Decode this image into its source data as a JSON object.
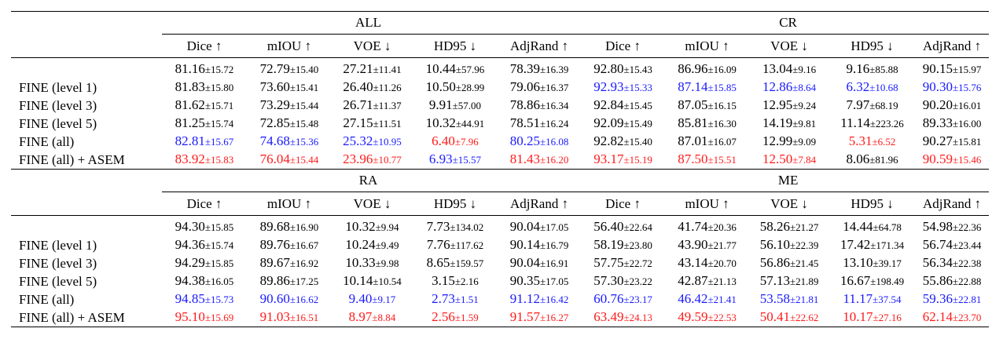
{
  "colors": {
    "blue": "#1a1aff",
    "red": "#ff1a1a",
    "black": "#000000"
  },
  "metrics": [
    "Dice ↑",
    "mIOU ↑",
    "VOE ↓",
    "HD95 ↓",
    "AdjRand ↑"
  ],
  "tables": [
    {
      "groups": [
        "ALL",
        "CR"
      ],
      "rows": [
        {
          "label": "",
          "cells": [
            {
              "v": "81.16",
              "s": "±15.72",
              "c": ""
            },
            {
              "v": "72.79",
              "s": "±15.40",
              "c": ""
            },
            {
              "v": "27.21",
              "s": "±11.41",
              "c": ""
            },
            {
              "v": "10.44",
              "s": "±57.96",
              "c": ""
            },
            {
              "v": "78.39",
              "s": "±16.39",
              "c": ""
            },
            {
              "v": "92.80",
              "s": "±15.43",
              "c": ""
            },
            {
              "v": "86.96",
              "s": "±16.09",
              "c": ""
            },
            {
              "v": "13.04",
              "s": "±9.16",
              "c": ""
            },
            {
              "v": "9.16",
              "s": "±85.88",
              "c": ""
            },
            {
              "v": "90.15",
              "s": "±15.97",
              "c": ""
            }
          ]
        },
        {
          "label": "FINE (level 1)",
          "cells": [
            {
              "v": "81.83",
              "s": "±15.80",
              "c": ""
            },
            {
              "v": "73.60",
              "s": "±15.41",
              "c": ""
            },
            {
              "v": "26.40",
              "s": "±11.26",
              "c": ""
            },
            {
              "v": "10.50",
              "s": "±28.99",
              "c": ""
            },
            {
              "v": "79.06",
              "s": "±16.37",
              "c": ""
            },
            {
              "v": "92.93",
              "s": "±15.33",
              "c": "blue"
            },
            {
              "v": "87.14",
              "s": "±15.85",
              "c": "blue"
            },
            {
              "v": "12.86",
              "s": "±8.64",
              "c": "blue"
            },
            {
              "v": "6.32",
              "s": "±10.68",
              "c": "blue"
            },
            {
              "v": "90.30",
              "s": "±15.76",
              "c": "blue"
            }
          ]
        },
        {
          "label": "FINE (level 3)",
          "cells": [
            {
              "v": "81.62",
              "s": "±15.71",
              "c": ""
            },
            {
              "v": "73.29",
              "s": "±15.44",
              "c": ""
            },
            {
              "v": "26.71",
              "s": "±11.37",
              "c": ""
            },
            {
              "v": "9.91",
              "s": "±57.00",
              "c": ""
            },
            {
              "v": "78.86",
              "s": "±16.34",
              "c": ""
            },
            {
              "v": "92.84",
              "s": "±15.45",
              "c": ""
            },
            {
              "v": "87.05",
              "s": "±16.15",
              "c": ""
            },
            {
              "v": "12.95",
              "s": "±9.24",
              "c": ""
            },
            {
              "v": "7.97",
              "s": "±68.19",
              "c": ""
            },
            {
              "v": "90.20",
              "s": "±16.01",
              "c": ""
            }
          ]
        },
        {
          "label": "FINE (level 5)",
          "cells": [
            {
              "v": "81.25",
              "s": "±15.74",
              "c": ""
            },
            {
              "v": "72.85",
              "s": "±15.48",
              "c": ""
            },
            {
              "v": "27.15",
              "s": "±11.51",
              "c": ""
            },
            {
              "v": "10.32",
              "s": "±44.91",
              "c": ""
            },
            {
              "v": "78.51",
              "s": "±16.24",
              "c": ""
            },
            {
              "v": "92.09",
              "s": "±15.49",
              "c": ""
            },
            {
              "v": "85.81",
              "s": "±16.30",
              "c": ""
            },
            {
              "v": "14.19",
              "s": "±9.81",
              "c": ""
            },
            {
              "v": "11.14",
              "s": "±223.26",
              "c": ""
            },
            {
              "v": "89.33",
              "s": "±16.00",
              "c": ""
            }
          ]
        },
        {
          "label": "FINE (all)",
          "cells": [
            {
              "v": "82.81",
              "s": "±15.67",
              "c": "blue"
            },
            {
              "v": "74.68",
              "s": "±15.36",
              "c": "blue"
            },
            {
              "v": "25.32",
              "s": "±10.95",
              "c": "blue"
            },
            {
              "v": "6.40",
              "s": "±7.96",
              "c": "red"
            },
            {
              "v": "80.25",
              "s": "±16.08",
              "c": "blue"
            },
            {
              "v": "92.82",
              "s": "±15.40",
              "c": ""
            },
            {
              "v": "87.01",
              "s": "±16.07",
              "c": ""
            },
            {
              "v": "12.99",
              "s": "±9.09",
              "c": ""
            },
            {
              "v": "5.31",
              "s": "±6.52",
              "c": "red"
            },
            {
              "v": "90.27",
              "s": "±15.81",
              "c": ""
            }
          ]
        },
        {
          "label": "FINE (all) + ASEM",
          "cells": [
            {
              "v": "83.92",
              "s": "±15.83",
              "c": "red"
            },
            {
              "v": "76.04",
              "s": "±15.44",
              "c": "red"
            },
            {
              "v": "23.96",
              "s": "±10.77",
              "c": "red"
            },
            {
              "v": "6.93",
              "s": "±15.57",
              "c": "blue"
            },
            {
              "v": "81.43",
              "s": "±16.20",
              "c": "red"
            },
            {
              "v": "93.17",
              "s": "±15.19",
              "c": "red"
            },
            {
              "v": "87.50",
              "s": "±15.51",
              "c": "red"
            },
            {
              "v": "12.50",
              "s": "±7.84",
              "c": "red"
            },
            {
              "v": "8.06",
              "s": "±81.96",
              "c": ""
            },
            {
              "v": "90.59",
              "s": "±15.46",
              "c": "red"
            }
          ]
        }
      ]
    },
    {
      "groups": [
        "RA",
        "ME"
      ],
      "rows": [
        {
          "label": "",
          "cells": [
            {
              "v": "94.30",
              "s": "±15.85",
              "c": ""
            },
            {
              "v": "89.68",
              "s": "±16.90",
              "c": ""
            },
            {
              "v": "10.32",
              "s": "±9.94",
              "c": ""
            },
            {
              "v": "7.73",
              "s": "±134.02",
              "c": ""
            },
            {
              "v": "90.04",
              "s": "±17.05",
              "c": ""
            },
            {
              "v": "56.40",
              "s": "±22.64",
              "c": ""
            },
            {
              "v": "41.74",
              "s": "±20.36",
              "c": ""
            },
            {
              "v": "58.26",
              "s": "±21.27",
              "c": ""
            },
            {
              "v": "14.44",
              "s": "±64.78",
              "c": ""
            },
            {
              "v": "54.98",
              "s": "±22.36",
              "c": ""
            }
          ]
        },
        {
          "label": "FINE (level 1)",
          "cells": [
            {
              "v": "94.36",
              "s": "±15.74",
              "c": ""
            },
            {
              "v": "89.76",
              "s": "±16.67",
              "c": ""
            },
            {
              "v": "10.24",
              "s": "±9.49",
              "c": ""
            },
            {
              "v": "7.76",
              "s": "±117.62",
              "c": ""
            },
            {
              "v": "90.14",
              "s": "±16.79",
              "c": ""
            },
            {
              "v": "58.19",
              "s": "±23.80",
              "c": ""
            },
            {
              "v": "43.90",
              "s": "±21.77",
              "c": ""
            },
            {
              "v": "56.10",
              "s": "±22.39",
              "c": ""
            },
            {
              "v": "17.42",
              "s": "±171.34",
              "c": ""
            },
            {
              "v": "56.74",
              "s": "±23.44",
              "c": ""
            }
          ]
        },
        {
          "label": "FINE (level 3)",
          "cells": [
            {
              "v": "94.29",
              "s": "±15.85",
              "c": ""
            },
            {
              "v": "89.67",
              "s": "±16.92",
              "c": ""
            },
            {
              "v": "10.33",
              "s": "±9.98",
              "c": ""
            },
            {
              "v": "8.65",
              "s": "±159.57",
              "c": ""
            },
            {
              "v": "90.04",
              "s": "±16.91",
              "c": ""
            },
            {
              "v": "57.75",
              "s": "±22.72",
              "c": ""
            },
            {
              "v": "43.14",
              "s": "±20.70",
              "c": ""
            },
            {
              "v": "56.86",
              "s": "±21.45",
              "c": ""
            },
            {
              "v": "13.10",
              "s": "±39.17",
              "c": ""
            },
            {
              "v": "56.34",
              "s": "±22.38",
              "c": ""
            }
          ]
        },
        {
          "label": "FINE (level 5)",
          "cells": [
            {
              "v": "94.38",
              "s": "±16.05",
              "c": ""
            },
            {
              "v": "89.86",
              "s": "±17.25",
              "c": ""
            },
            {
              "v": "10.14",
              "s": "±10.54",
              "c": ""
            },
            {
              "v": "3.15",
              "s": "±2.16",
              "c": ""
            },
            {
              "v": "90.35",
              "s": "±17.05",
              "c": ""
            },
            {
              "v": "57.30",
              "s": "±23.22",
              "c": ""
            },
            {
              "v": "42.87",
              "s": "±21.13",
              "c": ""
            },
            {
              "v": "57.13",
              "s": "±21.89",
              "c": ""
            },
            {
              "v": "16.67",
              "s": "±198.49",
              "c": ""
            },
            {
              "v": "55.86",
              "s": "±22.88",
              "c": ""
            }
          ]
        },
        {
          "label": "FINE (all)",
          "cells": [
            {
              "v": "94.85",
              "s": "±15.73",
              "c": "blue"
            },
            {
              "v": "90.60",
              "s": "±16.62",
              "c": "blue"
            },
            {
              "v": "9.40",
              "s": "±9.17",
              "c": "blue"
            },
            {
              "v": "2.73",
              "s": "±1.51",
              "c": "blue"
            },
            {
              "v": "91.12",
              "s": "±16.42",
              "c": "blue"
            },
            {
              "v": "60.76",
              "s": "±23.17",
              "c": "blue"
            },
            {
              "v": "46.42",
              "s": "±21.41",
              "c": "blue"
            },
            {
              "v": "53.58",
              "s": "±21.81",
              "c": "blue"
            },
            {
              "v": "11.17",
              "s": "±37.54",
              "c": "blue"
            },
            {
              "v": "59.36",
              "s": "±22.81",
              "c": "blue"
            }
          ]
        },
        {
          "label": "FINE (all) + ASEM",
          "cells": [
            {
              "v": "95.10",
              "s": "±15.69",
              "c": "red"
            },
            {
              "v": "91.03",
              "s": "±16.51",
              "c": "red"
            },
            {
              "v": "8.97",
              "s": "±8.84",
              "c": "red"
            },
            {
              "v": "2.56",
              "s": "±1.59",
              "c": "red"
            },
            {
              "v": "91.57",
              "s": "±16.27",
              "c": "red"
            },
            {
              "v": "63.49",
              "s": "±24.13",
              "c": "red"
            },
            {
              "v": "49.59",
              "s": "±22.53",
              "c": "red"
            },
            {
              "v": "50.41",
              "s": "±22.62",
              "c": "red"
            },
            {
              "v": "10.17",
              "s": "±27.16",
              "c": "red"
            },
            {
              "v": "62.14",
              "s": "±23.70",
              "c": "red"
            }
          ]
        }
      ]
    }
  ]
}
